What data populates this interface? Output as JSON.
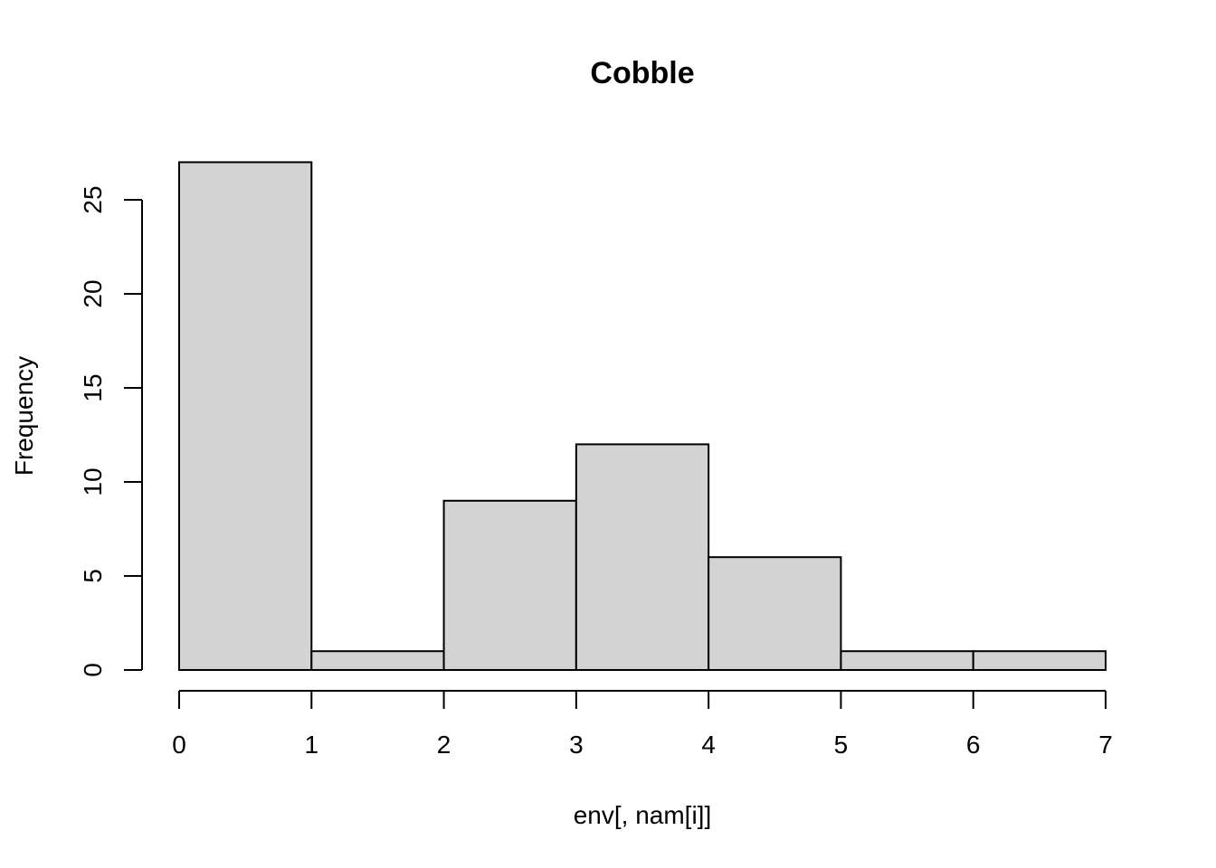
{
  "chart_data": {
    "type": "bar",
    "title": "Cobble",
    "xlabel": "env[, nam[i]]",
    "ylabel": "Frequency",
    "bins": [
      {
        "x0": 0,
        "x1": 1,
        "count": 27
      },
      {
        "x0": 1,
        "x1": 2,
        "count": 1
      },
      {
        "x0": 2,
        "x1": 3,
        "count": 9
      },
      {
        "x0": 3,
        "x1": 4,
        "count": 12
      },
      {
        "x0": 4,
        "x1": 5,
        "count": 6
      },
      {
        "x0": 5,
        "x1": 6,
        "count": 1
      },
      {
        "x0": 6,
        "x1": 7,
        "count": 1
      }
    ],
    "x_ticks": [
      0,
      1,
      2,
      3,
      4,
      5,
      6,
      7
    ],
    "y_ticks": [
      0,
      5,
      10,
      15,
      20,
      25
    ],
    "xlim": [
      0,
      7
    ],
    "ylim": [
      0,
      27
    ],
    "grid": false,
    "legend": "none",
    "bar_color": "#d3d3d3",
    "border_color": "#000000"
  }
}
